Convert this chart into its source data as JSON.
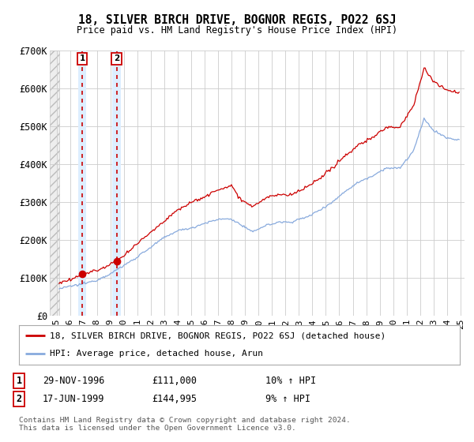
{
  "title": "18, SILVER BIRCH DRIVE, BOGNOR REGIS, PO22 6SJ",
  "subtitle": "Price paid vs. HM Land Registry's House Price Index (HPI)",
  "ylim": [
    0,
    700000
  ],
  "yticks": [
    0,
    100000,
    200000,
    300000,
    400000,
    500000,
    600000,
    700000
  ],
  "ytick_labels": [
    "£0",
    "£100K",
    "£200K",
    "£300K",
    "£400K",
    "£500K",
    "£600K",
    "£700K"
  ],
  "xlim_start": 1994.5,
  "xlim_end": 2025.3,
  "hatch_start": 1994.5,
  "hatch_end": 1995.2,
  "sale1_date": 1996.91,
  "sale1_price": 111000,
  "sale1_label": "1",
  "sale1_date_str": "29-NOV-1996",
  "sale1_price_str": "£111,000",
  "sale1_hpi_str": "10% ↑ HPI",
  "sale2_date": 1999.46,
  "sale2_price": 144995,
  "sale2_label": "2",
  "sale2_date_str": "17-JUN-1999",
  "sale2_price_str": "£144,995",
  "sale2_hpi_str": "9% ↑ HPI",
  "sale_highlight_color": "#ddeeff",
  "line_color_red": "#cc0000",
  "line_color_blue": "#88aadd",
  "grid_color": "#cccccc",
  "legend_label_red": "18, SILVER BIRCH DRIVE, BOGNOR REGIS, PO22 6SJ (detached house)",
  "legend_label_blue": "HPI: Average price, detached house, Arun",
  "footer": "Contains HM Land Registry data © Crown copyright and database right 2024.\nThis data is licensed under the Open Government Licence v3.0.",
  "bg_color": "#ffffff"
}
